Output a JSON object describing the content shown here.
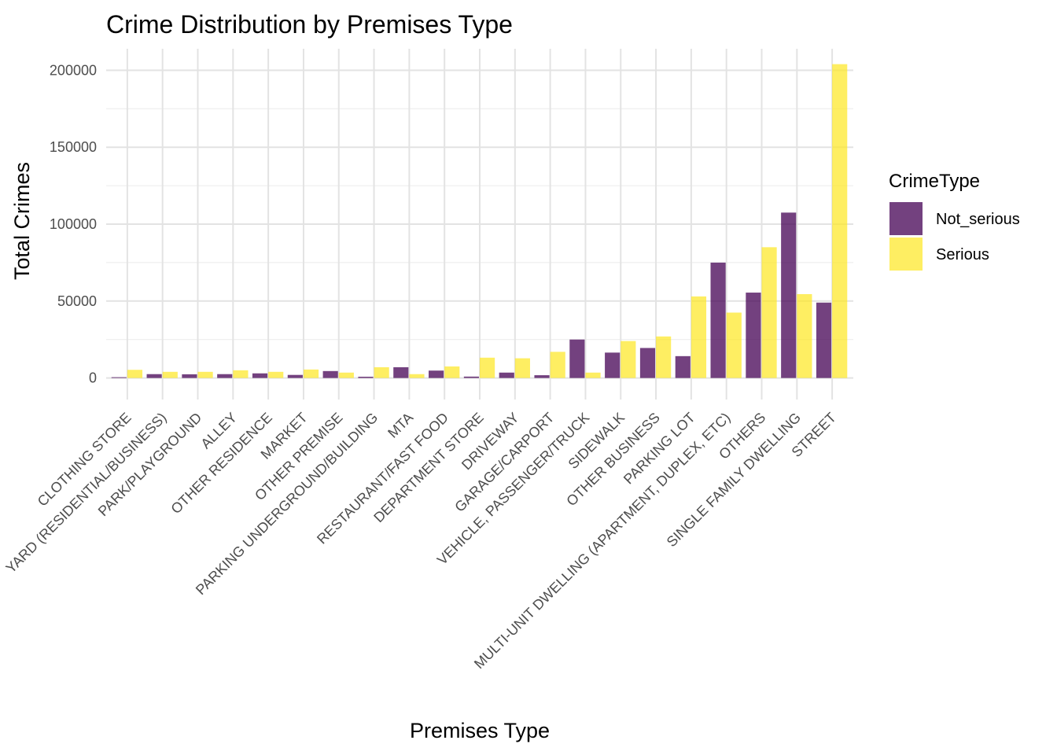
{
  "chart_data": {
    "type": "bar",
    "title": "Crime Distribution by Premises Type",
    "xlabel": "Premises Type",
    "ylabel": "Total Crimes",
    "ylim": [
      -14000,
      214000
    ],
    "yticks": [
      0,
      50000,
      100000,
      150000,
      200000
    ],
    "ytick_labels": [
      "0",
      "50000",
      "100000",
      "150000",
      "200000"
    ],
    "grid": true,
    "legend": {
      "title": "CrimeType",
      "placement": "right"
    },
    "categories": [
      "CLOTHING STORE",
      "YARD (RESIDENTIAL/BUSINESS)",
      "PARK/PLAYGROUND",
      "ALLEY",
      "OTHER RESIDENCE",
      "MARKET",
      "OTHER PREMISE",
      "PARKING UNDERGROUND/BUILDING",
      "MTA",
      "RESTAURANT/FAST FOOD",
      "DEPARTMENT STORE",
      "DRIVEWAY",
      "GARAGE/CARPORT",
      "VEHICLE, PASSENGER/TRUCK",
      "SIDEWALK",
      "OTHER BUSINESS",
      "PARKING LOT",
      "MULTI-UNIT DWELLING (APARTMENT, DUPLEX, ETC)",
      "OTHERS",
      "SINGLE FAMILY DWELLING",
      "STREET"
    ],
    "series": [
      {
        "name": "Not_serious",
        "color": "#440154",
        "values": [
          500,
          2500,
          2400,
          2500,
          3000,
          2000,
          4500,
          800,
          7000,
          4800,
          900,
          3500,
          1800,
          25000,
          16500,
          19500,
          14200,
          75000,
          55500,
          107500,
          49000
        ]
      },
      {
        "name": "Serious",
        "color": "#FDE725",
        "values": [
          5300,
          4000,
          4000,
          5000,
          4000,
          5500,
          3500,
          7000,
          2500,
          7500,
          13200,
          12800,
          17000,
          3500,
          24000,
          27000,
          53000,
          42500,
          85000,
          54500,
          204000
        ]
      }
    ]
  }
}
